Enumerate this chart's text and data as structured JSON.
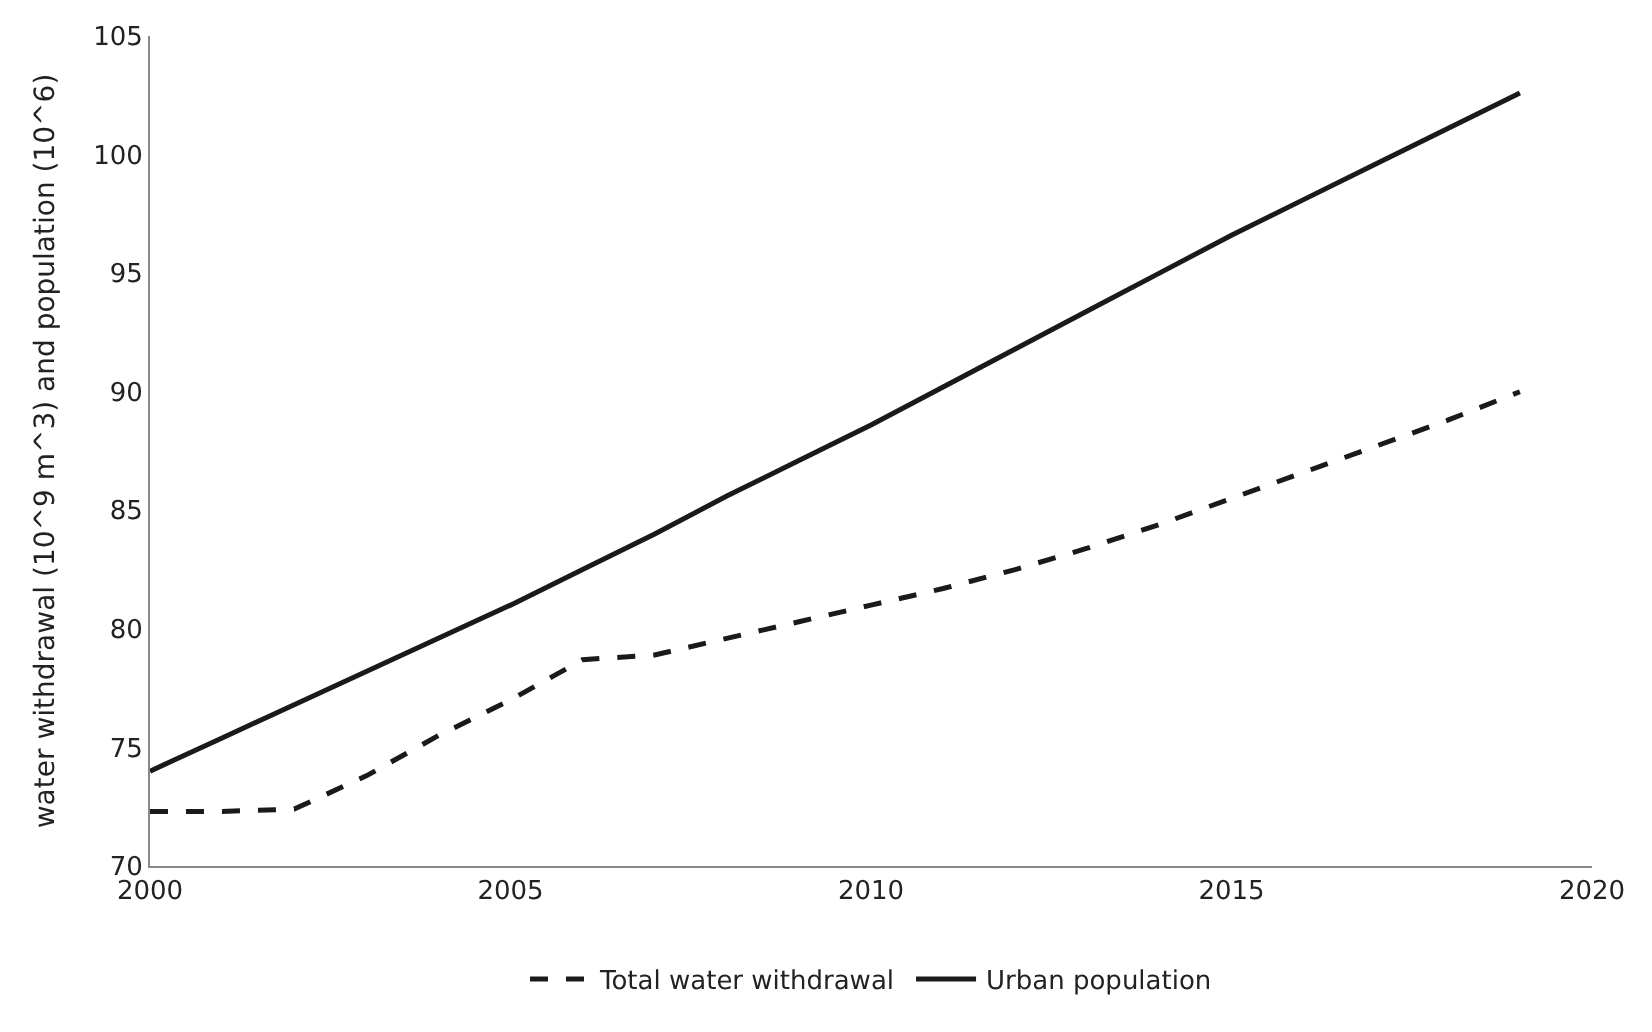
{
  "chart_data": {
    "type": "line",
    "x": [
      2000,
      2001,
      2002,
      2003,
      2004,
      2005,
      2006,
      2007,
      2008,
      2009,
      2010,
      2011,
      2012,
      2013,
      2014,
      2015,
      2016,
      2017,
      2018,
      2019
    ],
    "series": [
      {
        "name": "Total water withdrawal",
        "color": "#1a1a1a",
        "line_style": "dashed",
        "values": [
          72.3,
          72.3,
          72.4,
          73.8,
          75.5,
          77.0,
          78.7,
          78.9,
          79.6,
          80.3,
          81.0,
          81.7,
          82.5,
          83.4,
          84.4,
          85.5,
          86.6,
          87.7,
          88.8,
          90.0
        ]
      },
      {
        "name": "Urban population",
        "color": "#1a1a1a",
        "line_style": "solid",
        "values": [
          74.0,
          75.4,
          76.8,
          78.2,
          79.6,
          81.0,
          82.5,
          84.0,
          85.6,
          87.1,
          88.6,
          90.2,
          91.8,
          93.4,
          95.0,
          96.6,
          98.1,
          99.6,
          101.1,
          102.6
        ]
      }
    ],
    "ylabel": "water withdrawal (10^9 m^3) and population (10^6)",
    "xlim": [
      2000,
      2020
    ],
    "xticks": [
      2000,
      2005,
      2010,
      2015,
      2020
    ],
    "ylim": [
      70,
      105
    ],
    "yticks": [
      70,
      75,
      80,
      85,
      90,
      95,
      100,
      105
    ],
    "grid": false,
    "legend": "bottom",
    "marker": "none"
  }
}
